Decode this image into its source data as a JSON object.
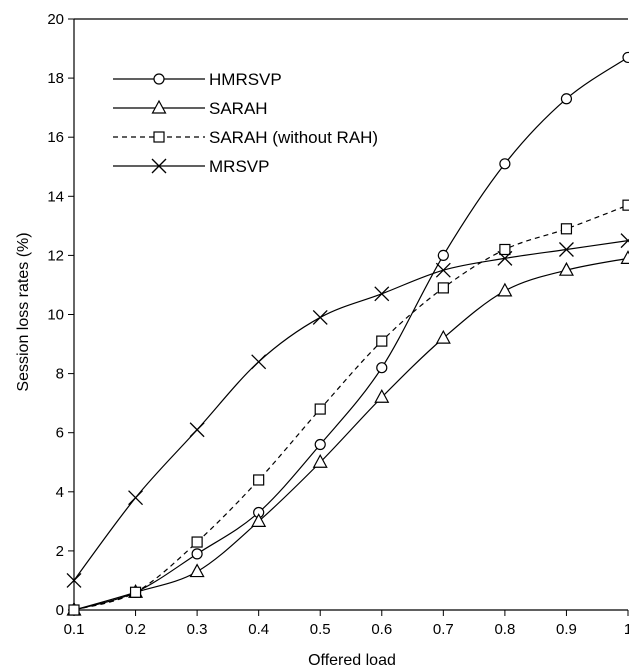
{
  "chart_data": {
    "type": "line",
    "title": "",
    "xlabel": "Offered load",
    "ylabel": "Session loss rates (%)",
    "xlim": [
      0.1,
      1.0
    ],
    "ylim": [
      0,
      20
    ],
    "x_ticks": [
      "0.1",
      "0.2",
      "0.3",
      "0.4",
      "0.5",
      "0.6",
      "0.7",
      "0.8",
      "0.9",
      "1"
    ],
    "y_ticks": [
      "0",
      "2",
      "4",
      "6",
      "8",
      "10",
      "12",
      "14",
      "16",
      "18",
      "20"
    ],
    "grid": false,
    "legend": "top-left",
    "x": [
      0.1,
      0.2,
      0.3,
      0.4,
      0.5,
      0.6,
      0.7,
      0.8,
      0.9,
      1.0
    ],
    "series": [
      {
        "name": "HMRSVP",
        "marker": "circle",
        "line_style": "solid",
        "values": [
          0.0,
          0.6,
          1.9,
          3.3,
          5.6,
          8.2,
          12.0,
          15.1,
          17.3,
          18.7
        ]
      },
      {
        "name": "SARAH",
        "marker": "triangle",
        "line_style": "solid",
        "values": [
          0.0,
          0.6,
          1.3,
          3.0,
          5.0,
          7.2,
          9.2,
          10.8,
          11.5,
          11.9
        ]
      },
      {
        "name": "SARAH (without RAH)",
        "marker": "square",
        "line_style": "dashed",
        "values": [
          0.0,
          0.6,
          2.3,
          4.4,
          6.8,
          9.1,
          10.9,
          12.2,
          12.9,
          13.7
        ]
      },
      {
        "name": "MRSVP",
        "marker": "x",
        "line_style": "solid",
        "values": [
          1.0,
          3.8,
          6.1,
          8.4,
          9.9,
          10.7,
          11.5,
          11.9,
          12.2,
          12.5
        ]
      }
    ]
  }
}
